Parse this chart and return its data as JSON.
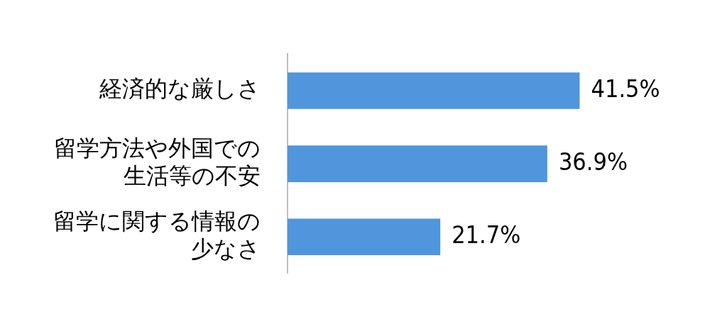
{
  "chart_data": {
    "type": "bar",
    "orientation": "horizontal",
    "categories": [
      "経済的な厳しさ",
      "留学方法や外国での生活等の不安",
      "留学に関する情報の少なさ"
    ],
    "values": [
      41.5,
      36.9,
      21.7
    ],
    "value_labels": [
      "41.5%",
      "36.9%",
      "21.7%"
    ],
    "color": "#5096dc",
    "grid": false,
    "legend": false
  }
}
